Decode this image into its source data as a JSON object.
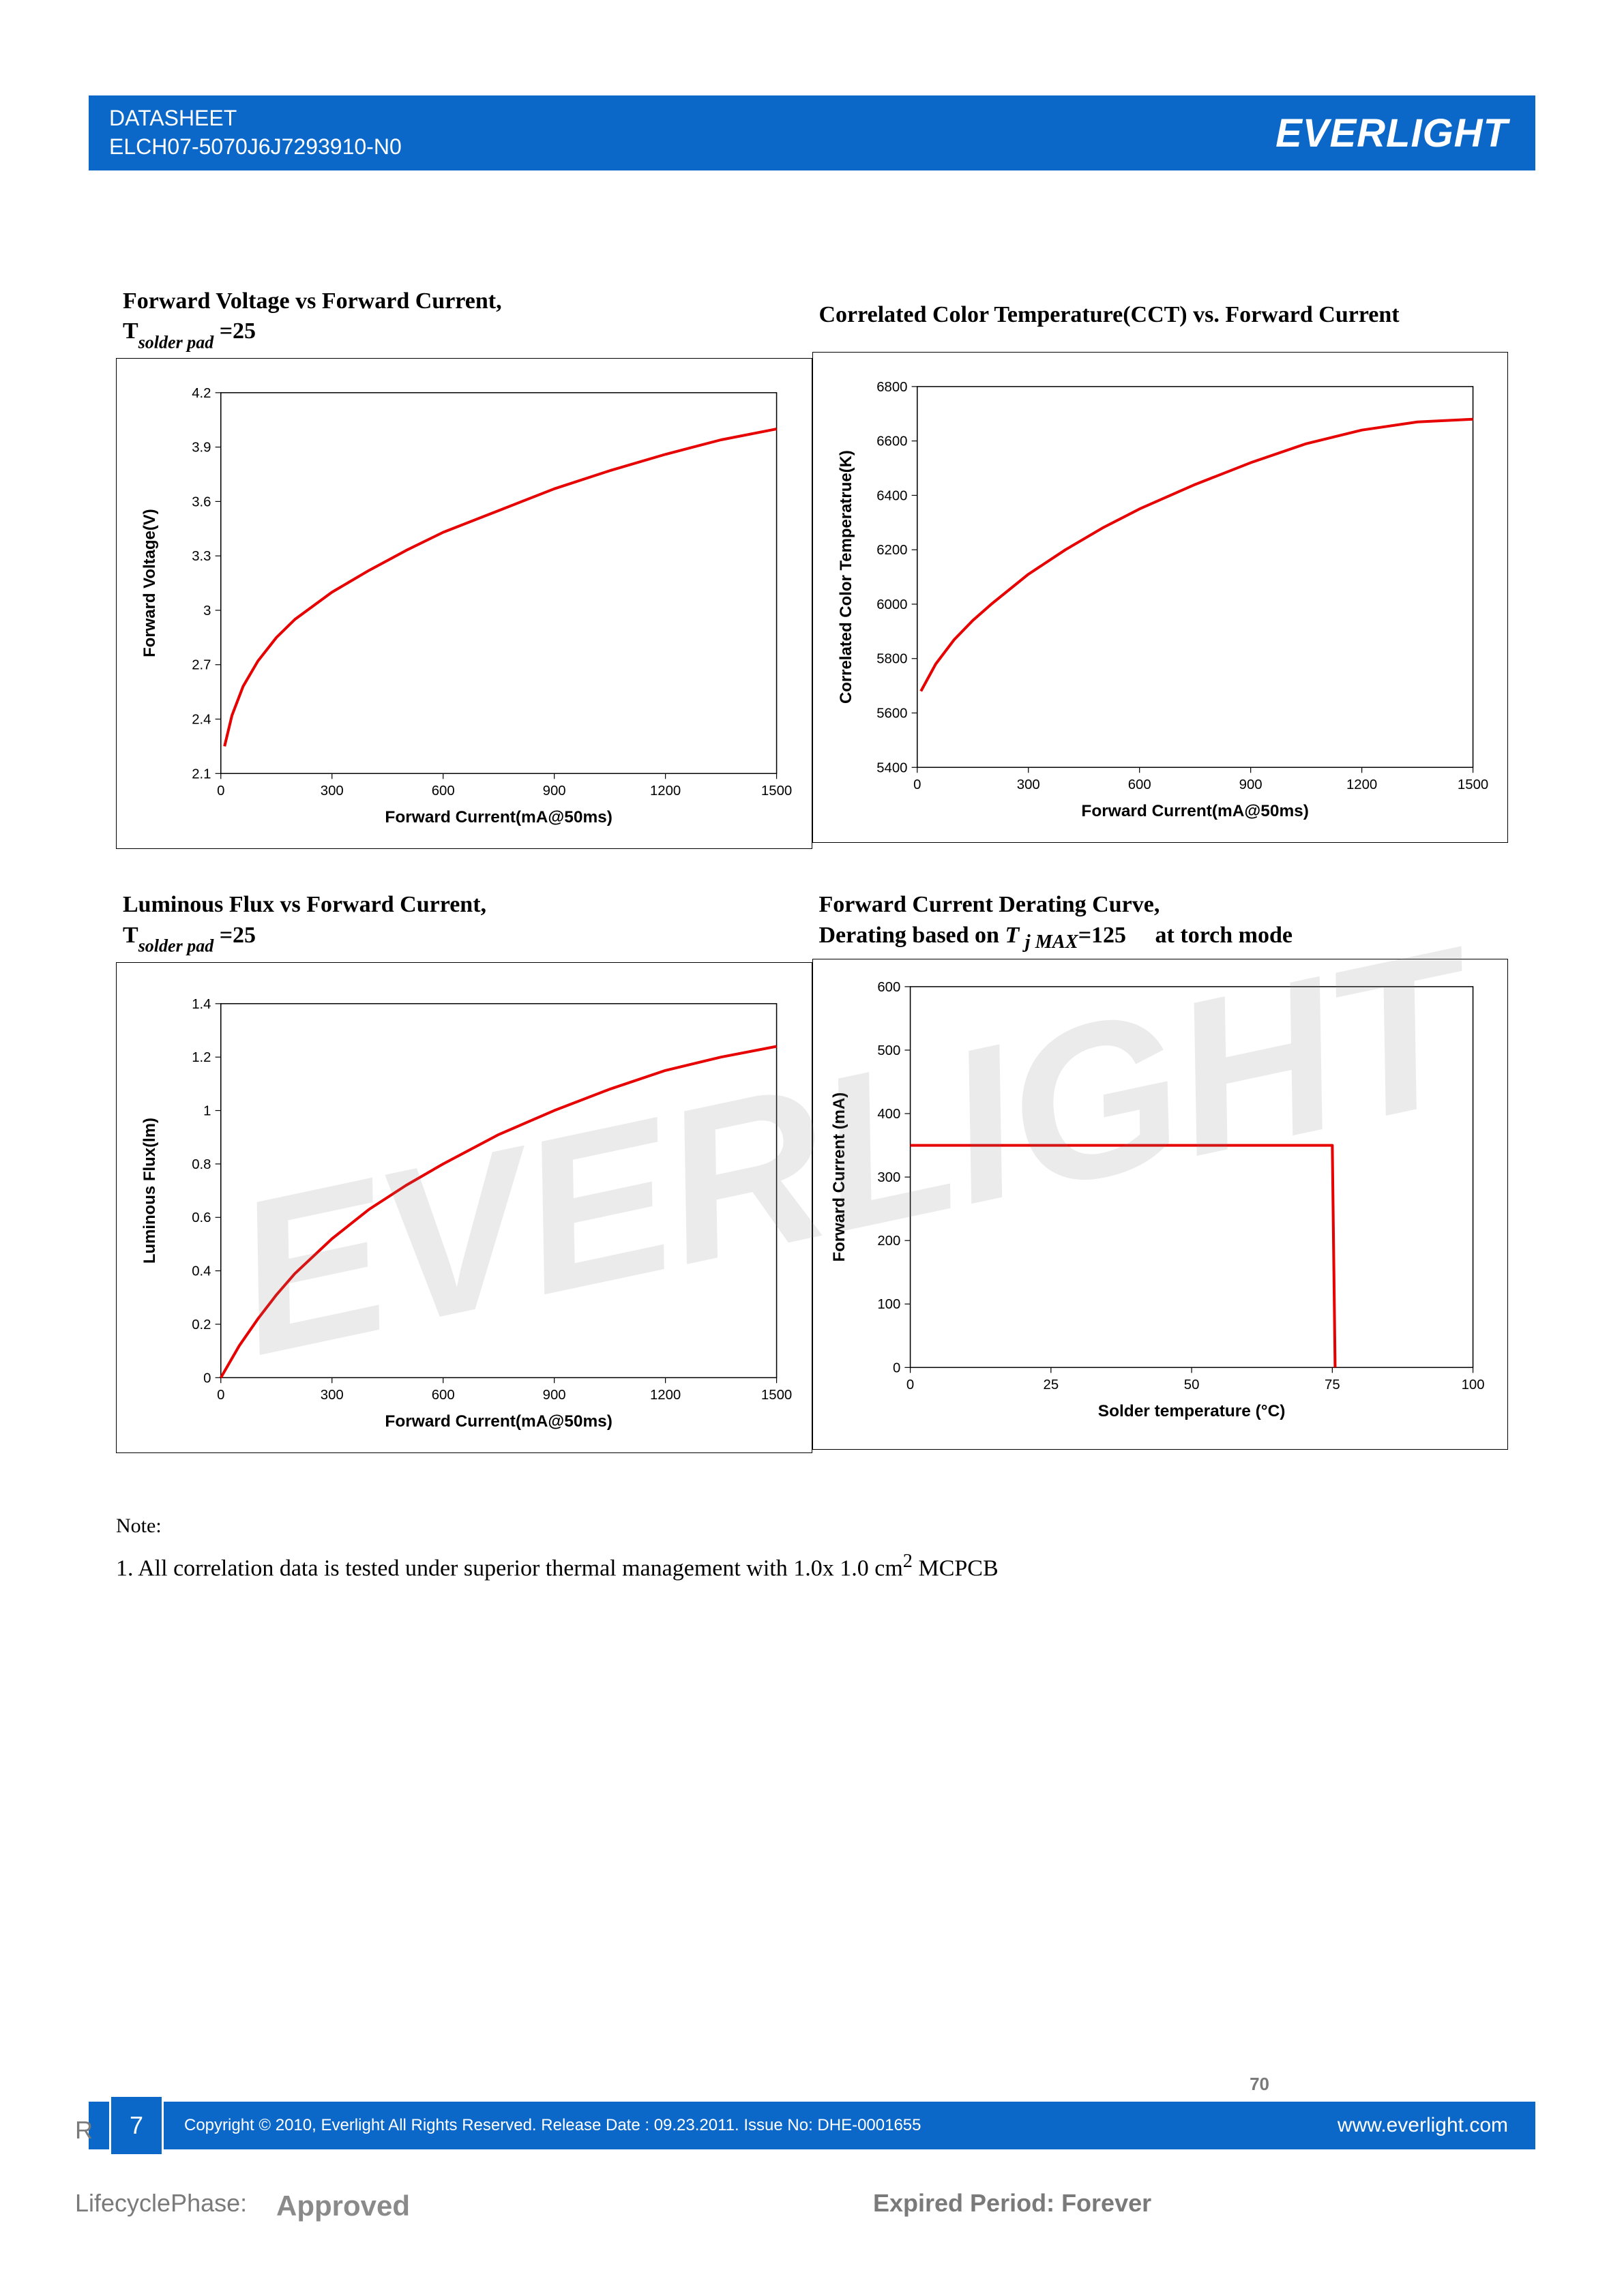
{
  "header": {
    "line1": "DATASHEET",
    "line2": "ELCH07-5070J6J7293910-N0",
    "logo_text": "EVERLIGHT"
  },
  "charts": {
    "vf_if": {
      "title_main": "Forward Voltage vs Forward Current,",
      "title_sub_prefix": "T",
      "title_sub_sub": "solder pad",
      "title_sub_suffix": " =25",
      "ylabel": "Forward Voltage(V)",
      "xlabel": "Forward Current(mA@50ms)",
      "xlim": [
        0,
        1500
      ],
      "xticks": [
        0,
        300,
        600,
        900,
        1200,
        1500
      ],
      "ylim": [
        2.1,
        4.2
      ],
      "yticks": [
        2.1,
        2.4,
        2.7,
        3.0,
        3.3,
        3.6,
        3.9,
        4.2
      ],
      "line_color": "#e60000",
      "line_width": 4,
      "points": [
        [
          10,
          2.25
        ],
        [
          30,
          2.42
        ],
        [
          60,
          2.58
        ],
        [
          100,
          2.72
        ],
        [
          150,
          2.85
        ],
        [
          200,
          2.95
        ],
        [
          300,
          3.1
        ],
        [
          400,
          3.22
        ],
        [
          500,
          3.33
        ],
        [
          600,
          3.43
        ],
        [
          750,
          3.55
        ],
        [
          900,
          3.67
        ],
        [
          1050,
          3.77
        ],
        [
          1200,
          3.86
        ],
        [
          1350,
          3.94
        ],
        [
          1500,
          4.0
        ]
      ]
    },
    "cct_if": {
      "title_main": "Correlated Color Temperature(CCT) vs. Forward Current",
      "ylabel": "Correlated Color Temperatrue(K)",
      "xlabel": "Forward Current(mA@50ms)",
      "xlim": [
        0,
        1500
      ],
      "xticks": [
        0,
        300,
        600,
        900,
        1200,
        1500
      ],
      "ylim": [
        5400,
        6800
      ],
      "yticks": [
        5400,
        5600,
        5800,
        6000,
        6200,
        6400,
        6600,
        6800
      ],
      "line_color": "#e60000",
      "line_width": 4,
      "points": [
        [
          10,
          5680
        ],
        [
          50,
          5780
        ],
        [
          100,
          5870
        ],
        [
          150,
          5940
        ],
        [
          200,
          6000
        ],
        [
          300,
          6110
        ],
        [
          400,
          6200
        ],
        [
          500,
          6280
        ],
        [
          600,
          6350
        ],
        [
          750,
          6440
        ],
        [
          900,
          6520
        ],
        [
          1050,
          6590
        ],
        [
          1200,
          6640
        ],
        [
          1350,
          6670
        ],
        [
          1500,
          6680
        ]
      ]
    },
    "flux_if": {
      "title_main": "Luminous Flux vs Forward Current,",
      "title_sub_prefix": "T",
      "title_sub_sub": "solder pad",
      "title_sub_suffix": " =25",
      "ylabel": "Luminous Flux(lm)",
      "xlabel": "Forward Current(mA@50ms)",
      "xlim": [
        0,
        1500
      ],
      "xticks": [
        0,
        300,
        600,
        900,
        1200,
        1500
      ],
      "ylim": [
        0.0,
        1.4
      ],
      "yticks": [
        0.0,
        0.2,
        0.4,
        0.6,
        0.8,
        1.0,
        1.2,
        1.4
      ],
      "line_color": "#e60000",
      "line_width": 4,
      "points": [
        [
          0,
          0.0
        ],
        [
          50,
          0.12
        ],
        [
          100,
          0.22
        ],
        [
          150,
          0.31
        ],
        [
          200,
          0.39
        ],
        [
          300,
          0.52
        ],
        [
          400,
          0.63
        ],
        [
          500,
          0.72
        ],
        [
          600,
          0.8
        ],
        [
          750,
          0.91
        ],
        [
          900,
          1.0
        ],
        [
          1050,
          1.08
        ],
        [
          1200,
          1.15
        ],
        [
          1350,
          1.2
        ],
        [
          1500,
          1.24
        ]
      ]
    },
    "derating": {
      "title_main": "Forward Current Derating Curve,",
      "title_sub_html": "Derating based on <i>T <sub>j MAX</sub></i>=125 &nbsp;&nbsp;&nbsp; at torch mode",
      "ylabel": "Forward Current (mA)",
      "xlabel": "Solder temperature (°C)",
      "xlim": [
        0,
        100
      ],
      "xticks": [
        0,
        25,
        50,
        75,
        100
      ],
      "ylim": [
        0,
        600
      ],
      "yticks": [
        0,
        100,
        200,
        300,
        400,
        500,
        600
      ],
      "line_color": "#e60000",
      "line_width": 4,
      "points": [
        [
          0,
          350
        ],
        [
          75,
          350
        ],
        [
          75.5,
          0
        ]
      ]
    }
  },
  "notes": {
    "label": "Note:",
    "item1_prefix": "1. ",
    "item1_text": "All correlation data is tested under superior thermal management with 1.0x 1.0 cm",
    "item1_sup": "2",
    "item1_suffix": " MCPCB"
  },
  "footer": {
    "page_number": "7",
    "copyright": "Copyright © 2010, Everlight All Rights Reserved. Release Date : 09.23.2011. Issue No: DHE-0001655",
    "url": "www.everlight.com",
    "ghost_r": "R",
    "ghost_lifecycle": "LifecyclePhase:",
    "ghost_approved": "Approved",
    "ghost_expired": "Expired Period: Forever",
    "ghost_70": "70"
  },
  "watermark_text": "EVERLIGHT",
  "style": {
    "header_bg": "#0b68c8",
    "chart_border": "#000000",
    "background": "#ffffff",
    "tick_font": "Arial",
    "tick_fontsize": 20,
    "axis_label_fontsize": 24,
    "title_fontsize": 34
  }
}
